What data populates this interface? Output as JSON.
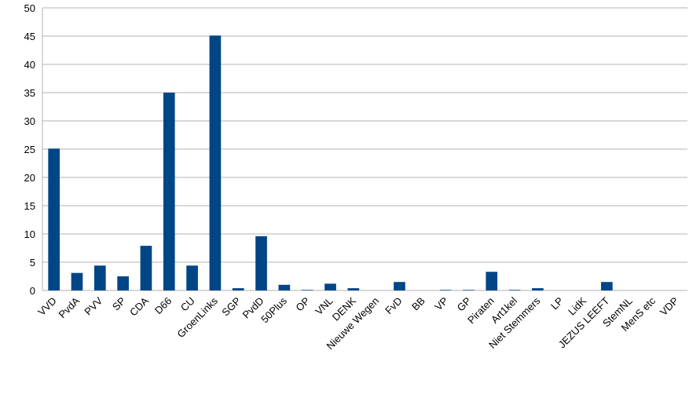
{
  "chart_data": {
    "type": "bar",
    "categories": [
      "VVD",
      "PvdA",
      "PVV",
      "SP",
      "CDA",
      "D66",
      "CU",
      "GroenLinks",
      "SGP",
      "PvdD",
      "50Plus",
      "OP",
      "VNL",
      "DENK",
      "Nieuwe Wegen",
      "FvD",
      "BB",
      "VP",
      "GP",
      "Piraten",
      "Art1kel",
      "Niet Stemmers",
      "LP",
      "LidK",
      "JEZUS LEEFT",
      "StemNL",
      "MenS etc",
      "VDP"
    ],
    "values": [
      25.1,
      3.1,
      4.4,
      2.5,
      7.9,
      35,
      4.4,
      45.1,
      0.4,
      9.6,
      1.0,
      0.1,
      1.2,
      0.4,
      0,
      1.5,
      0,
      0.1,
      0.1,
      3.3,
      0.1,
      0.4,
      0,
      0,
      1.5,
      0,
      0,
      0
    ],
    "color": "#004586",
    "ylim": [
      0,
      50
    ],
    "yticks": [
      0,
      5,
      10,
      15,
      20,
      25,
      30,
      35,
      40,
      45,
      50
    ],
    "grid": true
  }
}
